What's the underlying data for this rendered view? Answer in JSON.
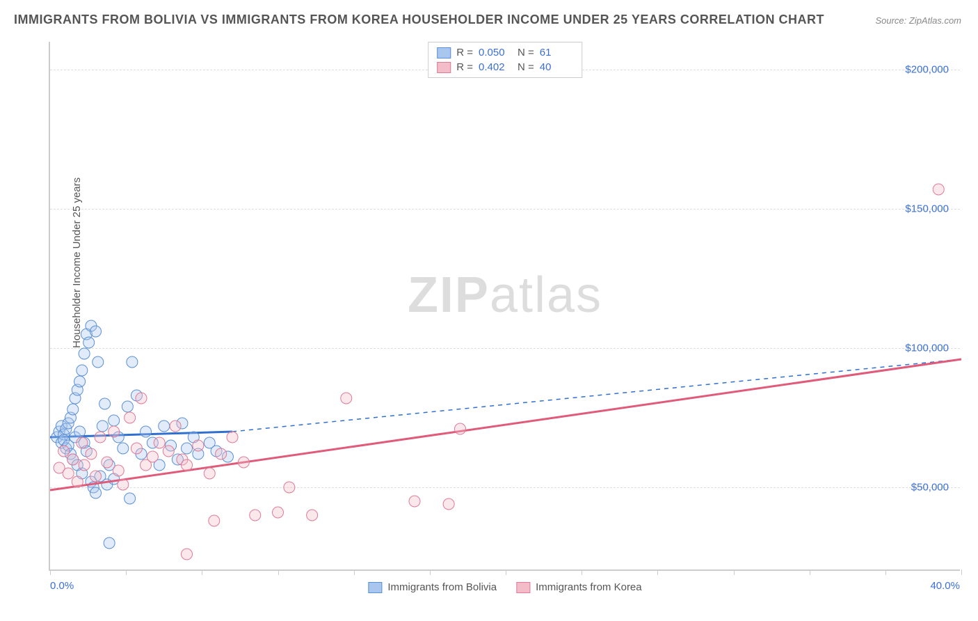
{
  "title": "IMMIGRANTS FROM BOLIVIA VS IMMIGRANTS FROM KOREA HOUSEHOLDER INCOME UNDER 25 YEARS CORRELATION CHART",
  "source": "Source: ZipAtlas.com",
  "watermark_bold": "ZIP",
  "watermark_rest": "atlas",
  "chart": {
    "type": "scatter",
    "xlim": [
      0,
      40
    ],
    "ylim": [
      20000,
      210000
    ],
    "x_axis_label_left": "0.0%",
    "x_axis_label_right": "40.0%",
    "y_gridlines": [
      50000,
      100000,
      150000,
      200000
    ],
    "y_tick_labels": [
      "$50,000",
      "$100,000",
      "$150,000",
      "$200,000"
    ],
    "y_axis_title": "Householder Income Under 25 years",
    "x_ticks_minor": [
      0,
      3.33,
      6.67,
      10,
      13.33,
      16.67,
      20,
      23.33,
      26.67,
      30,
      33.33,
      36.67,
      40
    ],
    "background_color": "#ffffff",
    "grid_color": "#dddddd",
    "axis_color": "#cccccc",
    "tick_label_color": "#3b6fd8",
    "title_color": "#555555",
    "title_fontsize": 18,
    "label_fontsize": 15,
    "marker_radius": 8,
    "marker_fill_opacity": 0.35,
    "marker_stroke_width": 1,
    "series": [
      {
        "name": "Immigrants from Bolivia",
        "color_fill": "#a8c6ee",
        "color_stroke": "#5a8fd6",
        "line_color": "#2f6fd0",
        "line_width": 3,
        "r_value": "0.050",
        "n_value": "61",
        "regression": {
          "x1": 0,
          "y1": 68000,
          "x2": 8,
          "y2": 70000,
          "dash_x2": 40,
          "dash_y2": 96000
        },
        "points": [
          [
            0.3,
            68000
          ],
          [
            0.4,
            70000
          ],
          [
            0.5,
            66000
          ],
          [
            0.5,
            72000
          ],
          [
            0.6,
            69000
          ],
          [
            0.6,
            67000
          ],
          [
            0.7,
            64000
          ],
          [
            0.7,
            71000
          ],
          [
            0.8,
            73000
          ],
          [
            0.8,
            65000
          ],
          [
            0.9,
            62000
          ],
          [
            0.9,
            75000
          ],
          [
            1.0,
            78000
          ],
          [
            1.0,
            60000
          ],
          [
            1.1,
            82000
          ],
          [
            1.1,
            68000
          ],
          [
            1.2,
            85000
          ],
          [
            1.2,
            58000
          ],
          [
            1.3,
            88000
          ],
          [
            1.3,
            70000
          ],
          [
            1.4,
            92000
          ],
          [
            1.4,
            55000
          ],
          [
            1.5,
            98000
          ],
          [
            1.5,
            66000
          ],
          [
            1.6,
            105000
          ],
          [
            1.6,
            63000
          ],
          [
            1.7,
            102000
          ],
          [
            1.8,
            52000
          ],
          [
            1.8,
            108000
          ],
          [
            1.9,
            50000
          ],
          [
            2.0,
            106000
          ],
          [
            2.0,
            48000
          ],
          [
            2.1,
            95000
          ],
          [
            2.2,
            54000
          ],
          [
            2.3,
            72000
          ],
          [
            2.4,
            80000
          ],
          [
            2.5,
            51000
          ],
          [
            2.6,
            58000
          ],
          [
            2.6,
            30000
          ],
          [
            2.8,
            74000
          ],
          [
            2.8,
            53000
          ],
          [
            3.0,
            68000
          ],
          [
            3.2,
            64000
          ],
          [
            3.4,
            79000
          ],
          [
            3.5,
            46000
          ],
          [
            3.6,
            95000
          ],
          [
            3.8,
            83000
          ],
          [
            4.0,
            62000
          ],
          [
            4.2,
            70000
          ],
          [
            4.5,
            66000
          ],
          [
            4.8,
            58000
          ],
          [
            5.0,
            72000
          ],
          [
            5.3,
            65000
          ],
          [
            5.6,
            60000
          ],
          [
            5.8,
            73000
          ],
          [
            6.0,
            64000
          ],
          [
            6.3,
            68000
          ],
          [
            6.5,
            62000
          ],
          [
            7.0,
            66000
          ],
          [
            7.3,
            63000
          ],
          [
            7.8,
            61000
          ]
        ]
      },
      {
        "name": "Immigrants from Korea",
        "color_fill": "#f3bcc9",
        "color_stroke": "#e07a95",
        "line_color": "#e05a7a",
        "line_width": 3,
        "r_value": "0.402",
        "n_value": "40",
        "regression": {
          "x1": 0,
          "y1": 49000,
          "x2": 40,
          "y2": 96000
        },
        "points": [
          [
            0.4,
            57000
          ],
          [
            0.6,
            63000
          ],
          [
            0.8,
            55000
          ],
          [
            1.0,
            60000
          ],
          [
            1.2,
            52000
          ],
          [
            1.4,
            66000
          ],
          [
            1.5,
            58000
          ],
          [
            1.8,
            62000
          ],
          [
            2.0,
            54000
          ],
          [
            2.2,
            68000
          ],
          [
            2.5,
            59000
          ],
          [
            2.8,
            70000
          ],
          [
            3.0,
            56000
          ],
          [
            3.2,
            51000
          ],
          [
            3.5,
            75000
          ],
          [
            3.8,
            64000
          ],
          [
            4.0,
            82000
          ],
          [
            4.2,
            58000
          ],
          [
            4.5,
            61000
          ],
          [
            4.8,
            66000
          ],
          [
            5.2,
            63000
          ],
          [
            5.5,
            72000
          ],
          [
            5.8,
            60000
          ],
          [
            6.0,
            26000
          ],
          [
            6.0,
            58000
          ],
          [
            6.5,
            65000
          ],
          [
            7.0,
            55000
          ],
          [
            7.2,
            38000
          ],
          [
            7.5,
            62000
          ],
          [
            8.0,
            68000
          ],
          [
            8.5,
            59000
          ],
          [
            9.0,
            40000
          ],
          [
            10.0,
            41000
          ],
          [
            10.5,
            50000
          ],
          [
            11.5,
            40000
          ],
          [
            13.0,
            82000
          ],
          [
            16.0,
            45000
          ],
          [
            17.5,
            44000
          ],
          [
            18.0,
            71000
          ],
          [
            39.0,
            157000
          ]
        ]
      }
    ]
  },
  "legend_top_labels": {
    "r": "R =",
    "n": "N ="
  },
  "legend_bottom": [
    {
      "swatch_fill": "#a8c6ee",
      "swatch_stroke": "#5a8fd6",
      "label": "Immigrants from Bolivia"
    },
    {
      "swatch_fill": "#f3bcc9",
      "swatch_stroke": "#e07a95",
      "label": "Immigrants from Korea"
    }
  ]
}
